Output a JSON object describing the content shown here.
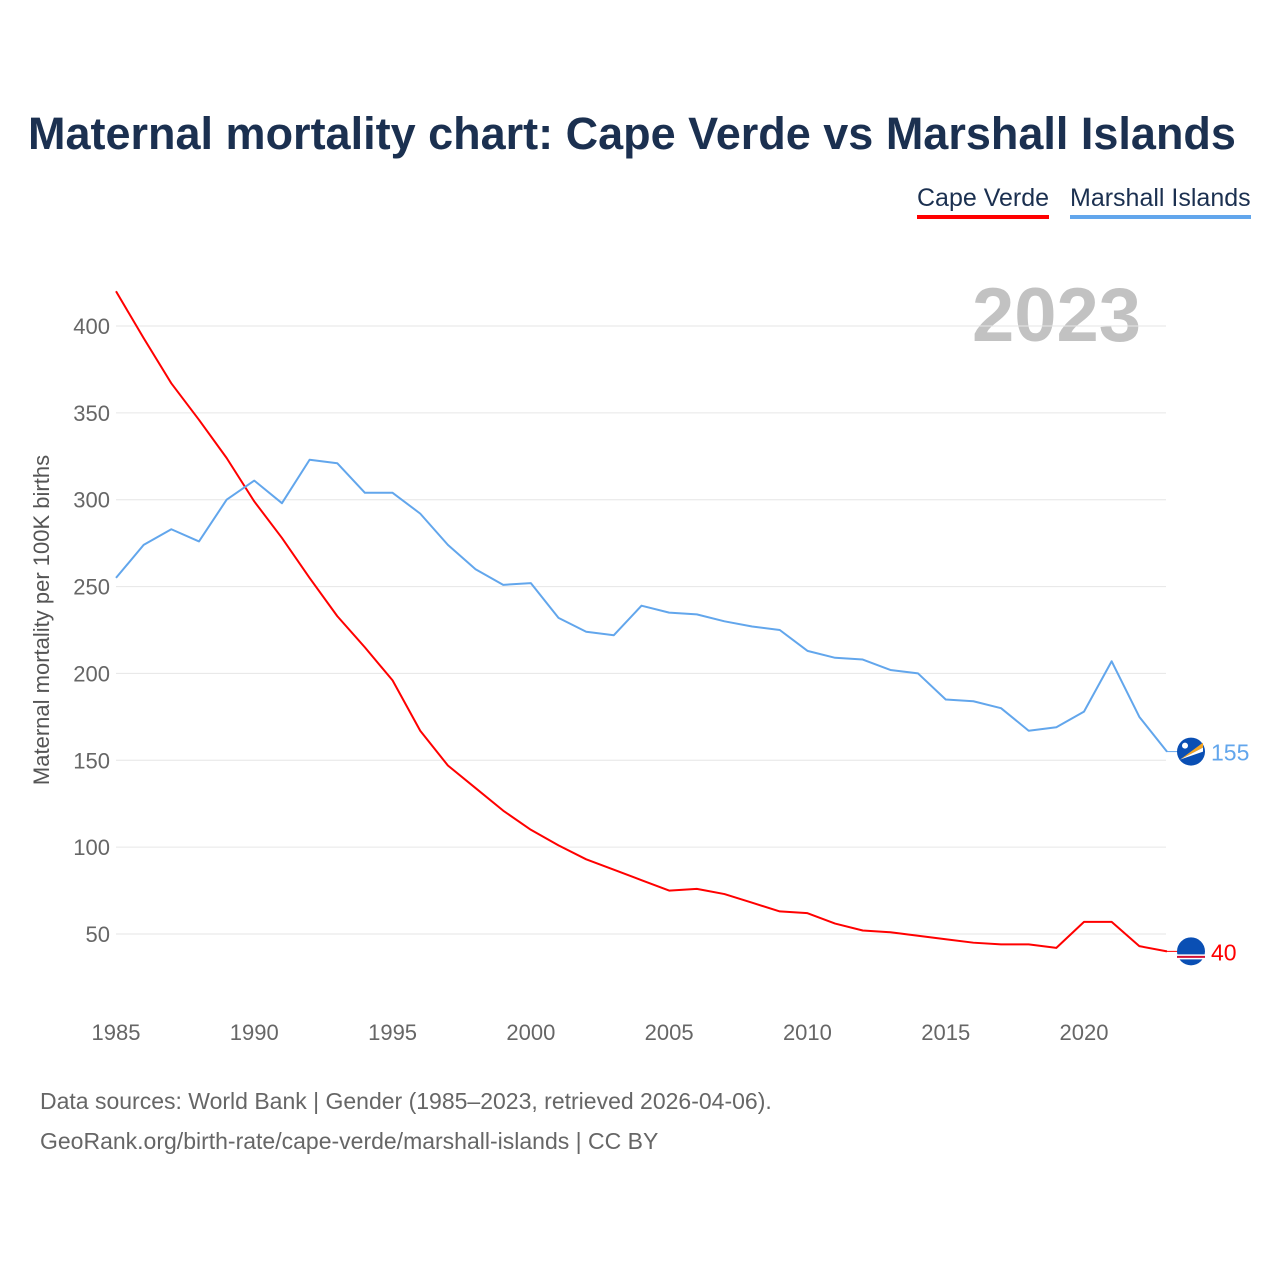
{
  "chart_data": {
    "type": "line",
    "title": "Maternal mortality chart: Cape Verde vs Marshall Islands",
    "ylabel": "Maternal mortality per 100K births",
    "xlabel": "",
    "year_label": "2023",
    "xlim": [
      1985,
      2023
    ],
    "ylim": [
      20,
      420
    ],
    "x_ticks": [
      1985,
      1990,
      1995,
      2000,
      2005,
      2010,
      2015,
      2020
    ],
    "y_ticks": [
      50,
      100,
      150,
      200,
      250,
      300,
      350,
      400
    ],
    "grid": true,
    "legend_placement": "top-right",
    "x": [
      1985,
      1986,
      1987,
      1988,
      1989,
      1990,
      1991,
      1992,
      1993,
      1994,
      1995,
      1996,
      1997,
      1998,
      1999,
      2000,
      2001,
      2002,
      2003,
      2004,
      2005,
      2006,
      2007,
      2008,
      2009,
      2010,
      2011,
      2012,
      2013,
      2014,
      2015,
      2016,
      2017,
      2018,
      2019,
      2020,
      2021,
      2022,
      2023
    ],
    "series": [
      {
        "name": "Cape Verde",
        "color": "#ff0000",
        "end_label": "40",
        "values": [
          420,
          393,
          367,
          346,
          324,
          299,
          278,
          255,
          233,
          215,
          196,
          167,
          147,
          134,
          121,
          110,
          101,
          93,
          87,
          81,
          75,
          76,
          73,
          68,
          63,
          62,
          56,
          52,
          51,
          49,
          47,
          45,
          44,
          44,
          42,
          57,
          57,
          43,
          40
        ]
      },
      {
        "name": "Marshall Islands",
        "color": "#62a6ec",
        "end_label": "155",
        "values": [
          255,
          274,
          283,
          276,
          300,
          311,
          298,
          323,
          321,
          304,
          304,
          292,
          274,
          260,
          251,
          252,
          232,
          224,
          222,
          239,
          235,
          234,
          230,
          227,
          225,
          213,
          209,
          208,
          202,
          200,
          185,
          184,
          180,
          167,
          169,
          178,
          207,
          175,
          155
        ]
      }
    ]
  },
  "footer": {
    "line1": "Data sources: World Bank | Gender (1985–2023, retrieved 2026-04-06).",
    "line2": "GeoRank.org/birth-rate/cape-verde/marshall-islands | CC BY"
  }
}
